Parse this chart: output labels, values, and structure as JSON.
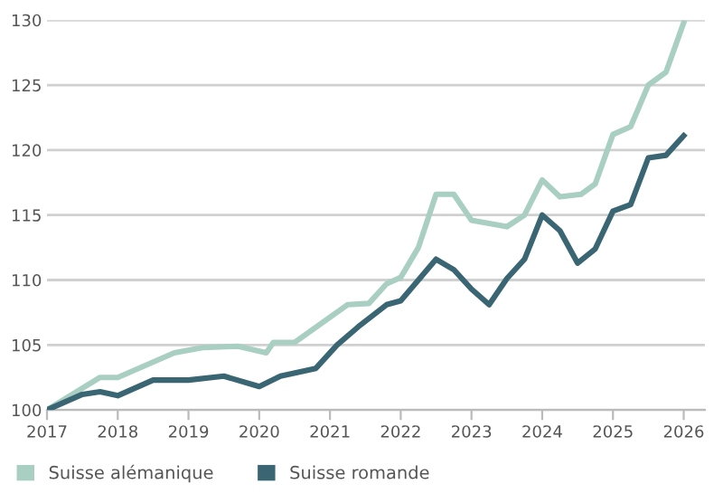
{
  "chart_data": {
    "type": "line",
    "xlim": [
      2017,
      2026.3
    ],
    "ylim": [
      100,
      130
    ],
    "xticks": [
      2017,
      2018,
      2019,
      2020,
      2021,
      2022,
      2023,
      2024,
      2025,
      2026
    ],
    "yticks": [
      100,
      105,
      110,
      115,
      120,
      125,
      130
    ],
    "grid": "y",
    "legend": "bottom",
    "marker": "none",
    "line_style": "solid",
    "series": [
      {
        "name": "Suisse alémanique",
        "color": "#a9cfc2",
        "x": [
          2017,
          2017.75,
          2018,
          2018.8,
          2019.2,
          2019.7,
          2020.1,
          2020.2,
          2020.5,
          2021.25,
          2021.55,
          2021.8,
          2022,
          2022.25,
          2022.5,
          2022.75,
          2023,
          2023.5,
          2023.75,
          2024,
          2024.25,
          2024.55,
          2024.75,
          2025,
          2025.25,
          2025.5,
          2025.75,
          2026
        ],
        "values": [
          100,
          102.5,
          102.5,
          104.4,
          104.8,
          104.9,
          104.4,
          105.2,
          105.2,
          108.1,
          108.2,
          109.7,
          110.2,
          112.5,
          116.6,
          116.6,
          114.6,
          114.1,
          115.0,
          117.7,
          116.4,
          116.6,
          117.4,
          121.2,
          121.8,
          125.0,
          126.0,
          129.8
        ]
      },
      {
        "name": "Suisse romande",
        "color": "#3a6674",
        "x": [
          2017,
          2017.5,
          2017.75,
          2018,
          2018.5,
          2019,
          2019.5,
          2020,
          2020.3,
          2020.8,
          2021.1,
          2021.4,
          2021.8,
          2022,
          2022.5,
          2022.75,
          2023,
          2023.25,
          2023.5,
          2023.75,
          2024,
          2024.25,
          2024.5,
          2024.75,
          2025,
          2025.25,
          2025.5,
          2025.75,
          2026
        ],
        "values": [
          100,
          101.2,
          101.4,
          101.1,
          102.3,
          102.3,
          102.6,
          101.8,
          102.6,
          103.2,
          105.0,
          106.4,
          108.1,
          108.4,
          111.6,
          110.8,
          109.3,
          108.1,
          110.1,
          111.6,
          115.0,
          113.8,
          111.3,
          112.4,
          115.3,
          115.8,
          119.4,
          119.6,
          121.1
        ]
      }
    ]
  }
}
